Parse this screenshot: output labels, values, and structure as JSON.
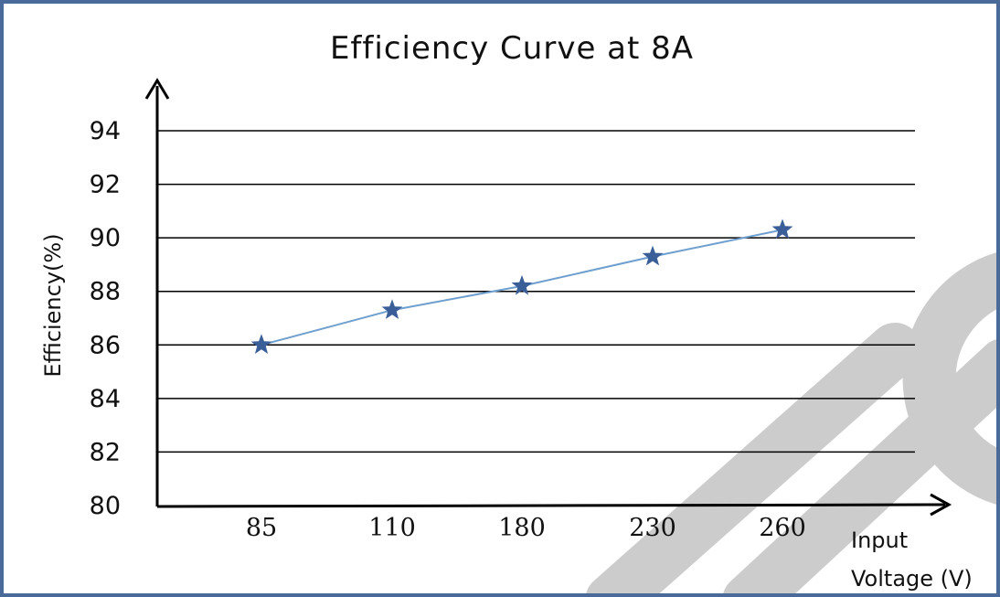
{
  "chart_data": {
    "type": "line",
    "title": "Efficiency Curve at 8A",
    "xlabel_line1": "Input",
    "xlabel_line2": "Voltage (V)",
    "ylabel": "Efficiency(%)",
    "categories": [
      "85",
      "110",
      "180",
      "230",
      "260"
    ],
    "y_ticks": [
      "80",
      "82",
      "84",
      "86",
      "88",
      "90",
      "92",
      "94"
    ],
    "ylim": [
      80,
      94
    ],
    "grid": true,
    "marker": "star",
    "series": [
      {
        "values": [
          86.0,
          87.3,
          88.2,
          89.3,
          90.3
        ]
      }
    ]
  },
  "colors": {
    "line": "#6f9fcf",
    "marker": "#3a5f98",
    "frame": "#4a6a9a",
    "grid": "#000000",
    "watermark": "#cccccc"
  }
}
